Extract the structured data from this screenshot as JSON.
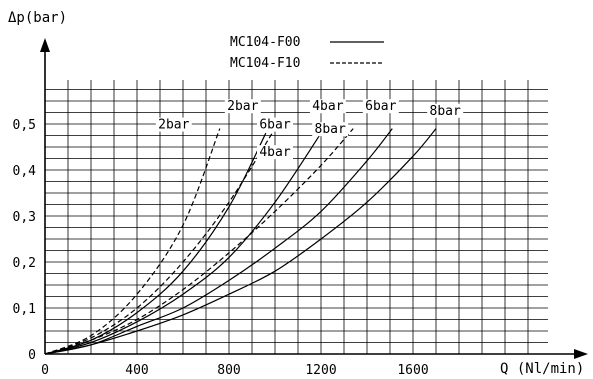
{
  "chart_data": {
    "type": "line",
    "xlabel": "Q (Nl/min)",
    "ylabel": "Δp(bar)",
    "xlim": [
      0,
      2400
    ],
    "ylim": [
      0,
      0.575
    ],
    "x_ticks": [
      "0",
      "400",
      "800",
      "1200",
      "1600"
    ],
    "x_tick_values": [
      0,
      400,
      800,
      1200,
      1600
    ],
    "y_ticks": [
      "0",
      "0,1",
      "0,2",
      "0,3",
      "0,4",
      "0,5"
    ],
    "y_tick_values": [
      0,
      0.1,
      0.2,
      0.3,
      0.4,
      0.5
    ],
    "grid": true,
    "legend_position": "top-center",
    "legend": [
      {
        "name": "MC104-F00",
        "dash": "solid"
      },
      {
        "name": "MC104-F10",
        "dash": "dashed"
      }
    ],
    "series": [
      {
        "name": "MC104-F00",
        "label": "2bar",
        "dash": "solid",
        "x": [
          0,
          200,
          400,
          600,
          800,
          960
        ],
        "y": [
          0,
          0.03,
          0.09,
          0.18,
          0.32,
          0.48
        ]
      },
      {
        "name": "MC104-F00",
        "label": "4bar",
        "dash": "solid",
        "x": [
          0,
          200,
          400,
          600,
          800,
          1000,
          1200
        ],
        "y": [
          0,
          0.025,
          0.07,
          0.13,
          0.21,
          0.33,
          0.48
        ]
      },
      {
        "name": "MC104-F00",
        "label": "6bar",
        "dash": "solid",
        "x": [
          0,
          200,
          400,
          600,
          800,
          1000,
          1200,
          1400,
          1510
        ],
        "y": [
          0,
          0.02,
          0.06,
          0.1,
          0.16,
          0.23,
          0.31,
          0.42,
          0.49
        ]
      },
      {
        "name": "MC104-F00",
        "label": "8bar",
        "dash": "solid",
        "x": [
          0,
          200,
          400,
          600,
          800,
          1000,
          1200,
          1400,
          1600,
          1700
        ],
        "y": [
          0,
          0.02,
          0.05,
          0.085,
          0.13,
          0.18,
          0.25,
          0.33,
          0.43,
          0.49
        ]
      },
      {
        "name": "MC104-F10",
        "label": "2bar",
        "dash": "dashed",
        "x": [
          0,
          200,
          400,
          600,
          760
        ],
        "y": [
          0,
          0.04,
          0.13,
          0.28,
          0.49
        ]
      },
      {
        "name": "MC104-F10",
        "label": "4bar",
        "dash": "dashed",
        "x": [
          0,
          200,
          400,
          600,
          800,
          1000
        ],
        "y": [
          0,
          0.035,
          0.1,
          0.2,
          0.33,
          0.49
        ]
      },
      {
        "name": "MC104-F10",
        "label": "6bar",
        "dash": "dashed",
        "x": [
          0,
          200,
          400,
          600,
          800,
          1000,
          1200,
          1340
        ],
        "y": [
          0,
          0.03,
          0.075,
          0.14,
          0.22,
          0.31,
          0.41,
          0.49
        ]
      }
    ],
    "curve_labels": [
      {
        "text": "2bar",
        "x": 560,
        "y": 0.49
      },
      {
        "text": "2bar",
        "x": 860,
        "y": 0.53
      },
      {
        "text": "6bar",
        "x": 1000,
        "y": 0.49
      },
      {
        "text": "4bar",
        "x": 1000,
        "y": 0.43
      },
      {
        "text": "4bar",
        "x": 1230,
        "y": 0.53
      },
      {
        "text": "8bar",
        "x": 1240,
        "y": 0.48
      },
      {
        "text": "6bar",
        "x": 1460,
        "y": 0.53
      },
      {
        "text": "8bar",
        "x": 1740,
        "y": 0.52
      }
    ]
  }
}
